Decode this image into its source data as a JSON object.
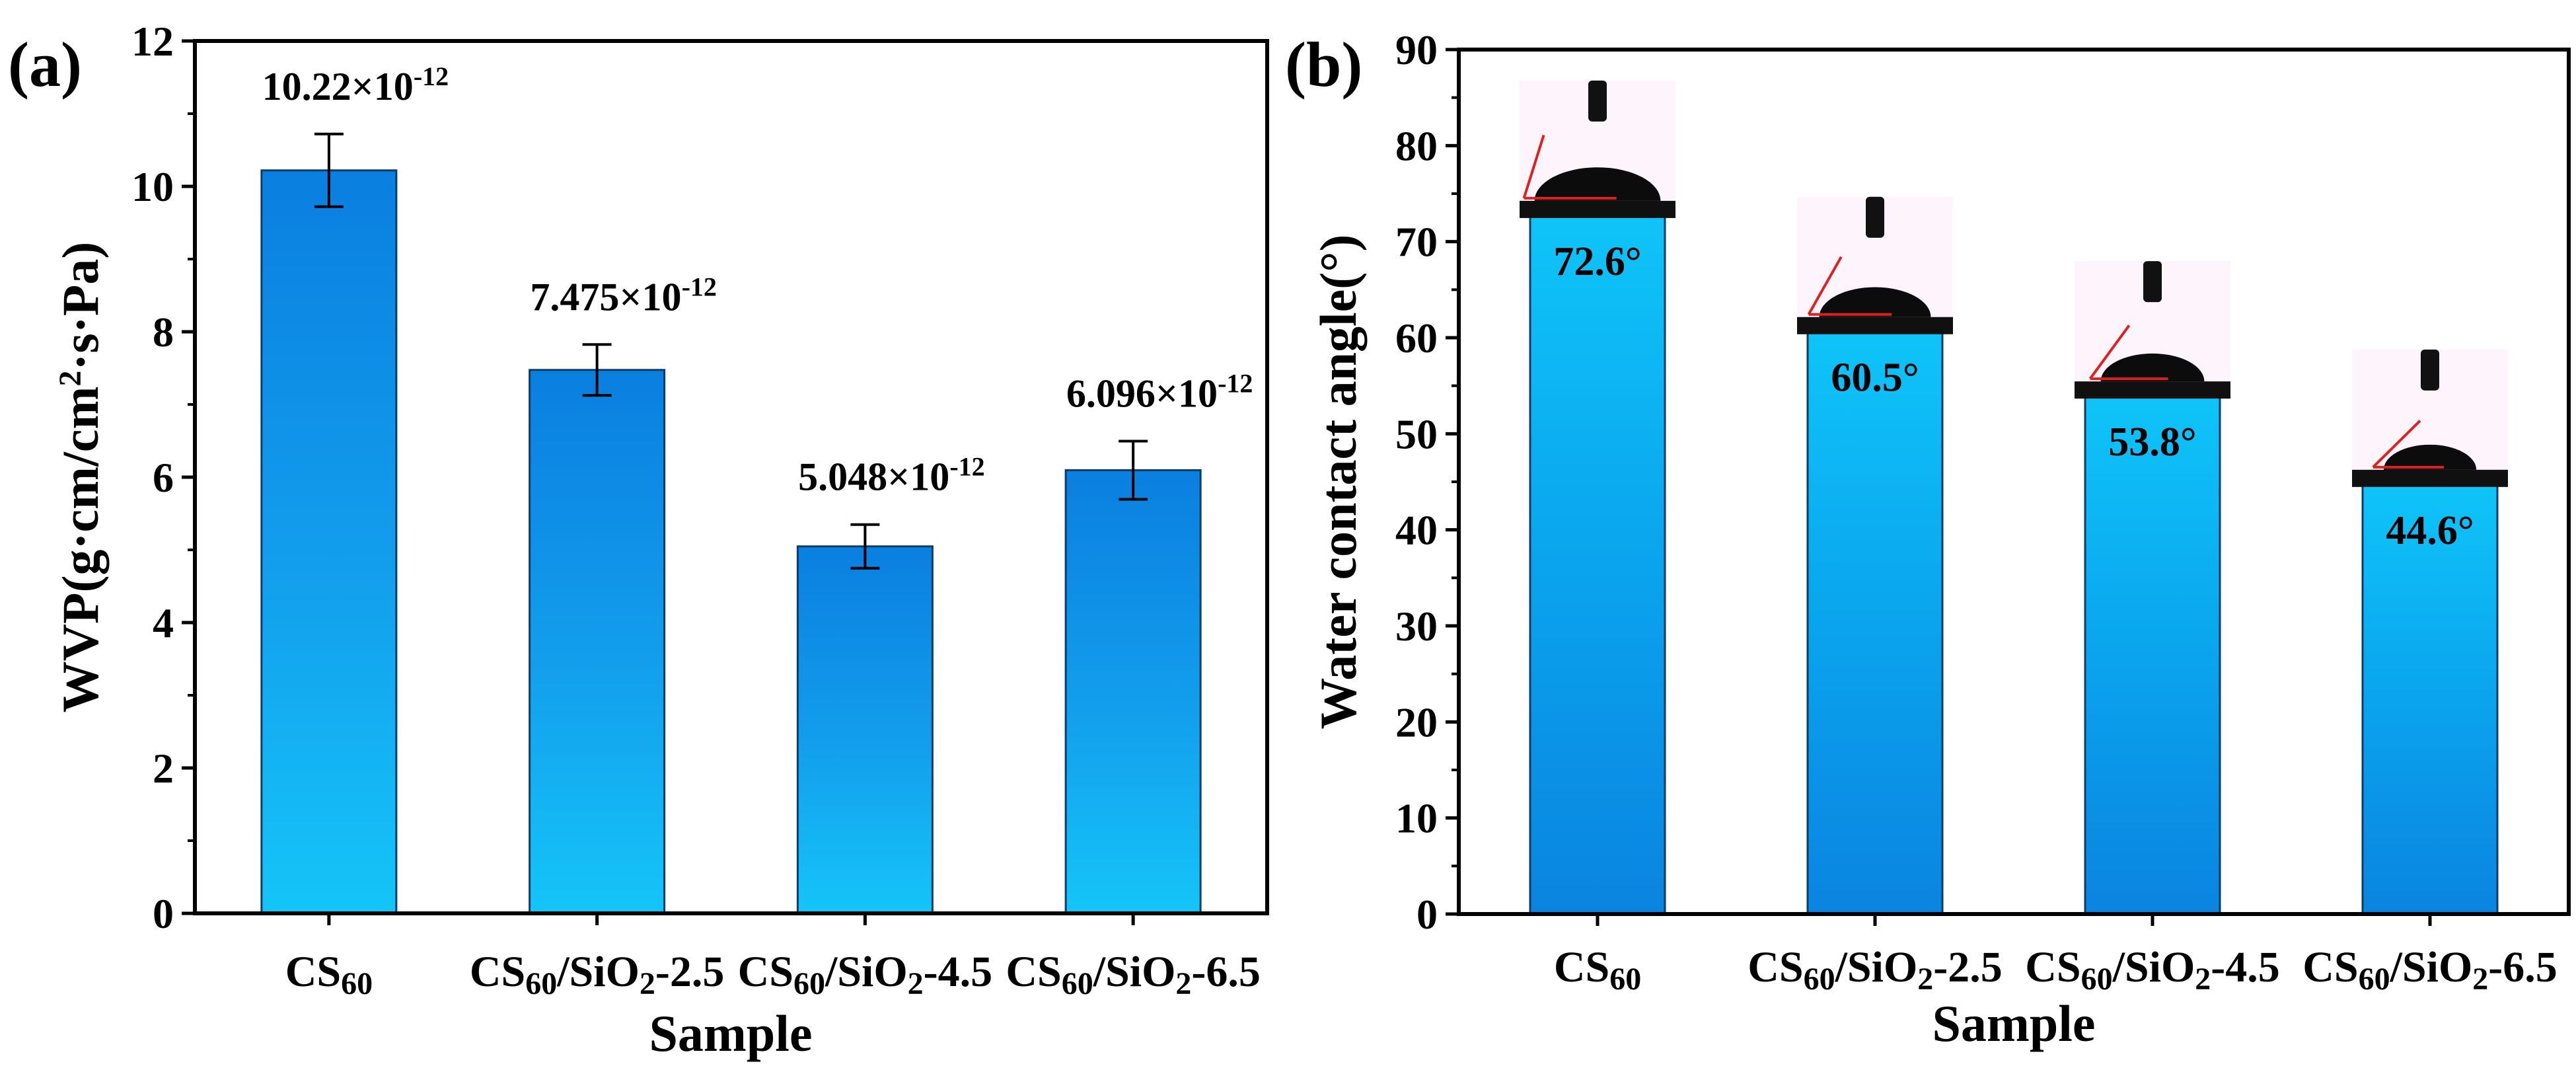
{
  "panels": [
    {
      "panel_label": "(a)",
      "accent_color": "#1592e8",
      "chart_data": {
        "type": "bar",
        "categories": [
          {
            "base": "CS",
            "sub": "60",
            "tail": ""
          },
          {
            "base": "CS",
            "sub": "60",
            "mid": "/SiO",
            "sub2": "2",
            "tail": "-2.5"
          },
          {
            "base": "CS",
            "sub": "60",
            "mid": "/SiO",
            "sub2": "2",
            "tail": "-4.5"
          },
          {
            "base": "CS",
            "sub": "60",
            "mid": "/SiO",
            "sub2": "2",
            "tail": "-6.5"
          }
        ],
        "values": [
          10.22,
          7.475,
          5.048,
          6.096
        ],
        "errors": [
          0.5,
          0.35,
          0.3,
          0.4
        ],
        "data_labels": [
          {
            "main": "10.22×10",
            "exp": "-12"
          },
          {
            "main": "7.475×10",
            "exp": "-12"
          },
          {
            "main": "5.048×10",
            "exp": "-12"
          },
          {
            "main": "6.096×10",
            "exp": "-12"
          }
        ],
        "ylabel": {
          "main": "WVP(g·cm/cm",
          "sup": "2",
          "tail": "·s·Pa)"
        },
        "xlabel": "Sample",
        "ylim": [
          0,
          12
        ],
        "yticks": [
          0,
          2,
          4,
          6,
          8,
          10,
          12
        ],
        "grid": false
      }
    },
    {
      "panel_label": "(b)",
      "accent_color": "#0ab4f0",
      "chart_data": {
        "type": "bar",
        "categories": [
          {
            "base": "CS",
            "sub": "60",
            "tail": ""
          },
          {
            "base": "CS",
            "sub": "60",
            "mid": "/SiO",
            "sub2": "2",
            "tail": "-2.5"
          },
          {
            "base": "CS",
            "sub": "60",
            "mid": "/SiO",
            "sub2": "2",
            "tail": "-4.5"
          },
          {
            "base": "CS",
            "sub": "60",
            "mid": "/SiO",
            "sub2": "2",
            "tail": "-6.5"
          }
        ],
        "values": [
          72.6,
          60.5,
          53.8,
          44.6
        ],
        "data_labels": [
          "72.6°",
          "60.5°",
          "53.8°",
          "44.6°"
        ],
        "ylabel": "Water contact angle(°)",
        "xlabel": "Sample",
        "ylim": [
          0,
          90
        ],
        "yticks": [
          0,
          10,
          20,
          30,
          40,
          50,
          60,
          70,
          80,
          90
        ],
        "grid": false,
        "droplet_images": [
          "contact-angle-photo-cs60",
          "contact-angle-photo-2.5",
          "contact-angle-photo-4.5",
          "contact-angle-photo-6.5"
        ]
      }
    }
  ]
}
